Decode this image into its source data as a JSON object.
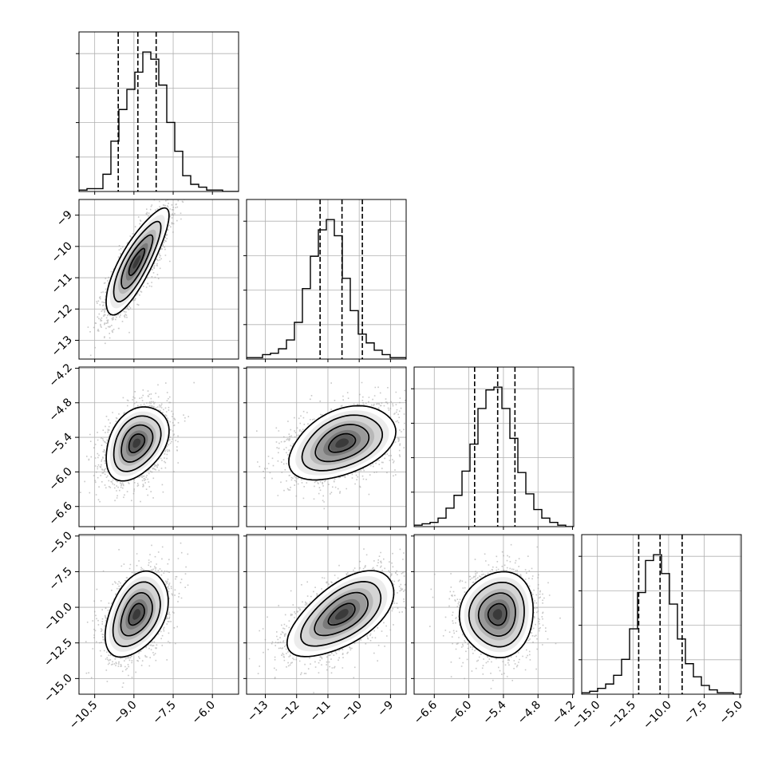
{
  "chart_data": {
    "type": "corner",
    "parameters": [
      {
        "name": "",
        "range": [
          -11.1,
          -5.0
        ],
        "ticks": [
          -10.5,
          -9.0,
          -7.5,
          -6.0
        ],
        "tick_labels": [
          "−10.5",
          "−9.0",
          "−7.5",
          "−6.0"
        ]
      },
      {
        "name": "",
        "range": [
          -13.6,
          -8.5
        ],
        "ticks": [
          -13,
          -12,
          -11,
          -10,
          -9
        ],
        "tick_labels": [
          "−13",
          "−12",
          "−11",
          "−10",
          "−9"
        ]
      },
      {
        "name": "",
        "range": [
          -6.95,
          -4.18
        ],
        "ticks": [
          -6.6,
          -6.0,
          -5.4,
          -4.8,
          -4.2
        ],
        "tick_labels": [
          "−6.6",
          "−6.0",
          "−5.4",
          "−4.8",
          "−4.2"
        ]
      },
      {
        "name": "",
        "range": [
          -16.1,
          -4.9
        ],
        "ticks": [
          -15.0,
          -12.5,
          -10.0,
          -7.5,
          -5.0
        ],
        "tick_labels": [
          "−15.0",
          "−12.5",
          "−10.0",
          "−7.5",
          "−5.0"
        ]
      }
    ],
    "histograms": [
      {
        "quantiles": [
          -9.6,
          -8.85,
          -8.15
        ],
        "counts": [
          1,
          2,
          2,
          12,
          35,
          57,
          71,
          83,
          97,
          92,
          74,
          48,
          28,
          11,
          5,
          3,
          1,
          1,
          0,
          0
        ]
      },
      {
        "quantiles": [
          -11.25,
          -10.55,
          -9.9
        ],
        "counts": [
          1,
          1,
          3,
          4,
          7,
          13,
          25,
          48,
          70,
          88,
          95,
          84,
          55,
          33,
          17,
          11,
          6,
          3,
          1,
          1
        ]
      },
      {
        "quantiles": [
          -5.9,
          -5.5,
          -5.2
        ],
        "counts": [
          1,
          2,
          3,
          6,
          13,
          22,
          39,
          58,
          83,
          96,
          98,
          83,
          62,
          38,
          23,
          12,
          6,
          3,
          1,
          0
        ]
      },
      {
        "quantiles": [
          -12.1,
          -10.6,
          -9.05
        ],
        "counts": [
          1,
          2,
          4,
          7,
          13,
          24,
          45,
          70,
          92,
          96,
          83,
          62,
          38,
          21,
          12,
          6,
          3,
          1,
          1,
          0
        ]
      }
    ],
    "pairs": [
      {
        "row": 1,
        "col": 0,
        "mean": [
          -8.9,
          -10.5
        ],
        "sd": [
          0.6,
          0.85
        ],
        "rho": 0.82
      },
      {
        "row": 2,
        "col": 0,
        "mean": [
          -8.9,
          -5.5
        ],
        "sd": [
          0.6,
          0.32
        ],
        "rho": 0.35
      },
      {
        "row": 2,
        "col": 1,
        "mean": [
          -10.55,
          -5.5
        ],
        "sd": [
          0.85,
          0.32
        ],
        "rho": 0.4
      },
      {
        "row": 3,
        "col": 0,
        "mean": [
          -8.9,
          -10.5
        ],
        "sd": [
          0.6,
          1.5
        ],
        "rho": 0.4
      },
      {
        "row": 3,
        "col": 1,
        "mean": [
          -10.55,
          -10.5
        ],
        "sd": [
          0.85,
          1.5
        ],
        "rho": 0.6
      },
      {
        "row": 3,
        "col": 2,
        "mean": [
          -5.5,
          -10.5
        ],
        "sd": [
          0.32,
          1.5
        ],
        "rho": 0.05
      }
    ],
    "quantile_levels": [
      0.16,
      0.5,
      0.84
    ],
    "contour_levels": [
      0.5,
      1.0,
      1.5,
      2.0
    ],
    "grid": true
  }
}
